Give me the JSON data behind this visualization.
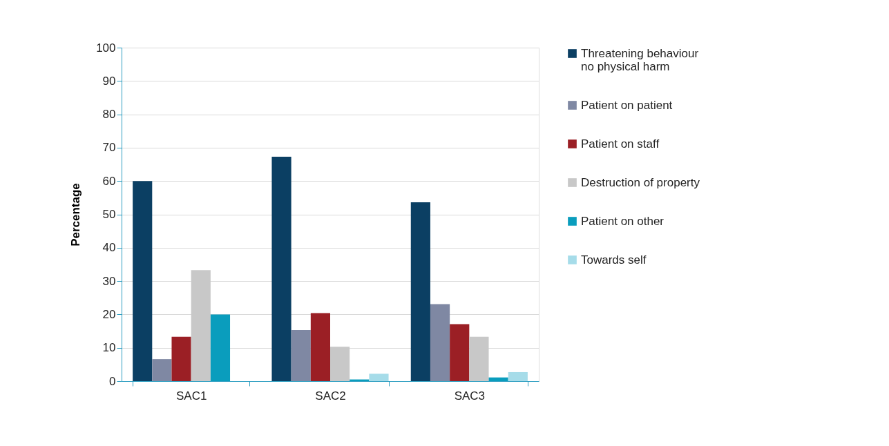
{
  "chart_data": {
    "type": "bar",
    "ylabel": "Percentage",
    "categories": [
      "SAC1",
      "SAC2",
      "SAC3"
    ],
    "ylim": [
      0,
      100
    ],
    "yticks": [
      0,
      10,
      20,
      30,
      40,
      50,
      60,
      70,
      80,
      90,
      100
    ],
    "grid": "y",
    "legend": "right",
    "series": [
      {
        "name": "Threatening behaviour\nno physical harm",
        "color": "#0b3f63",
        "values": [
          60,
          67.3,
          53.6
        ]
      },
      {
        "name": "Patient on patient",
        "color": "#7f88a3",
        "values": [
          6.6,
          15.3,
          23.1
        ]
      },
      {
        "name": "Patient on staff",
        "color": "#9b1f25",
        "values": [
          13.3,
          20.4,
          17.1
        ]
      },
      {
        "name": "Destruction of property",
        "color": "#c8c8c8",
        "values": [
          33.3,
          10.3,
          13.3
        ]
      },
      {
        "name": "Patient on other",
        "color": "#0a9dbd",
        "values": [
          20,
          0.5,
          1.1
        ]
      },
      {
        "name": "Towards self",
        "color": "#a6dce9",
        "values": [
          null,
          2.2,
          2.7
        ]
      }
    ]
  }
}
